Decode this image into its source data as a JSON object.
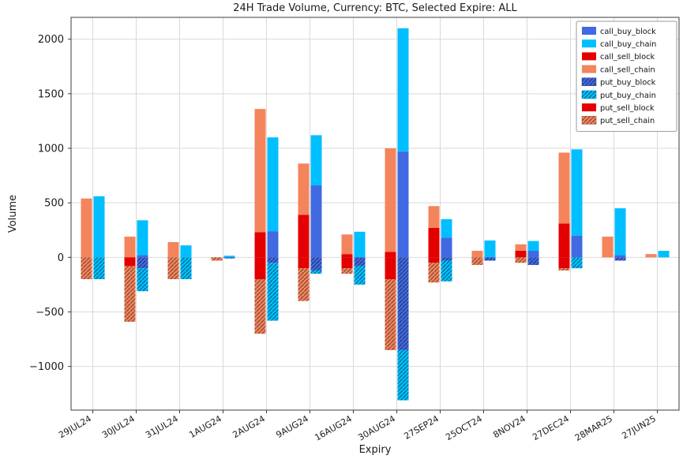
{
  "chart_data": {
    "type": "bar",
    "title": "24H Trade Volume, Currency: BTC, Selected Expire: ALL",
    "xlabel": "Expiry",
    "ylabel": "Volume",
    "ylim": [
      -1400,
      2200
    ],
    "yticks": [
      -1000,
      -500,
      0,
      500,
      1000,
      1500,
      2000
    ],
    "grid": true,
    "legend_position": "upper right",
    "categories": [
      "29JUL24",
      "30JUL24",
      "31JUL24",
      "1AUG24",
      "2AUG24",
      "9AUG24",
      "16AUG24",
      "30AUG24",
      "27SEP24",
      "25OCT24",
      "8NOV24",
      "27DEC24",
      "28MAR25",
      "27JUN25"
    ],
    "bar_groups": {
      "sell_bar": {
        "positive": [
          "call_sell_block",
          "call_sell_chain"
        ],
        "negative": [
          "put_sell_block",
          "put_sell_chain"
        ]
      },
      "buy_bar": {
        "positive": [
          "call_buy_block",
          "call_buy_chain"
        ],
        "negative": [
          "put_buy_block",
          "put_buy_chain"
        ]
      }
    },
    "series": [
      {
        "name": "call_buy_block",
        "color": "#4169E1",
        "hatch": false,
        "sign": 1,
        "values": [
          0,
          20,
          0,
          0,
          240,
          660,
          0,
          970,
          180,
          0,
          60,
          200,
          20,
          0
        ]
      },
      {
        "name": "call_buy_chain",
        "color": "#00BFFF",
        "hatch": false,
        "sign": 1,
        "values": [
          560,
          320,
          110,
          15,
          860,
          460,
          235,
          1130,
          170,
          155,
          90,
          790,
          430,
          60
        ]
      },
      {
        "name": "call_sell_block",
        "color": "#E40000",
        "hatch": false,
        "sign": 1,
        "values": [
          0,
          0,
          0,
          0,
          230,
          390,
          30,
          50,
          270,
          0,
          60,
          310,
          0,
          0
        ]
      },
      {
        "name": "call_sell_chain",
        "color": "#F4845C",
        "hatch": false,
        "sign": 1,
        "values": [
          540,
          190,
          140,
          0,
          1130,
          470,
          180,
          950,
          200,
          60,
          60,
          650,
          190,
          30
        ]
      },
      {
        "name": "put_buy_block",
        "color": "#4169E1",
        "hatch": true,
        "sign": -1,
        "values": [
          0,
          100,
          0,
          10,
          50,
          120,
          80,
          850,
          30,
          30,
          70,
          0,
          30,
          0
        ]
      },
      {
        "name": "put_buy_chain",
        "color": "#00BFFF",
        "hatch": true,
        "sign": -1,
        "values": [
          200,
          210,
          200,
          0,
          530,
          30,
          170,
          460,
          190,
          0,
          0,
          100,
          0,
          0
        ]
      },
      {
        "name": "put_sell_block",
        "color": "#E40000",
        "hatch": false,
        "sign": -1,
        "values": [
          0,
          80,
          0,
          0,
          200,
          100,
          100,
          200,
          50,
          0,
          0,
          100,
          0,
          0
        ]
      },
      {
        "name": "put_sell_chain",
        "color": "#F4845C",
        "hatch": true,
        "sign": -1,
        "values": [
          200,
          510,
          200,
          30,
          500,
          300,
          50,
          650,
          180,
          70,
          50,
          20,
          0,
          0
        ]
      }
    ]
  }
}
